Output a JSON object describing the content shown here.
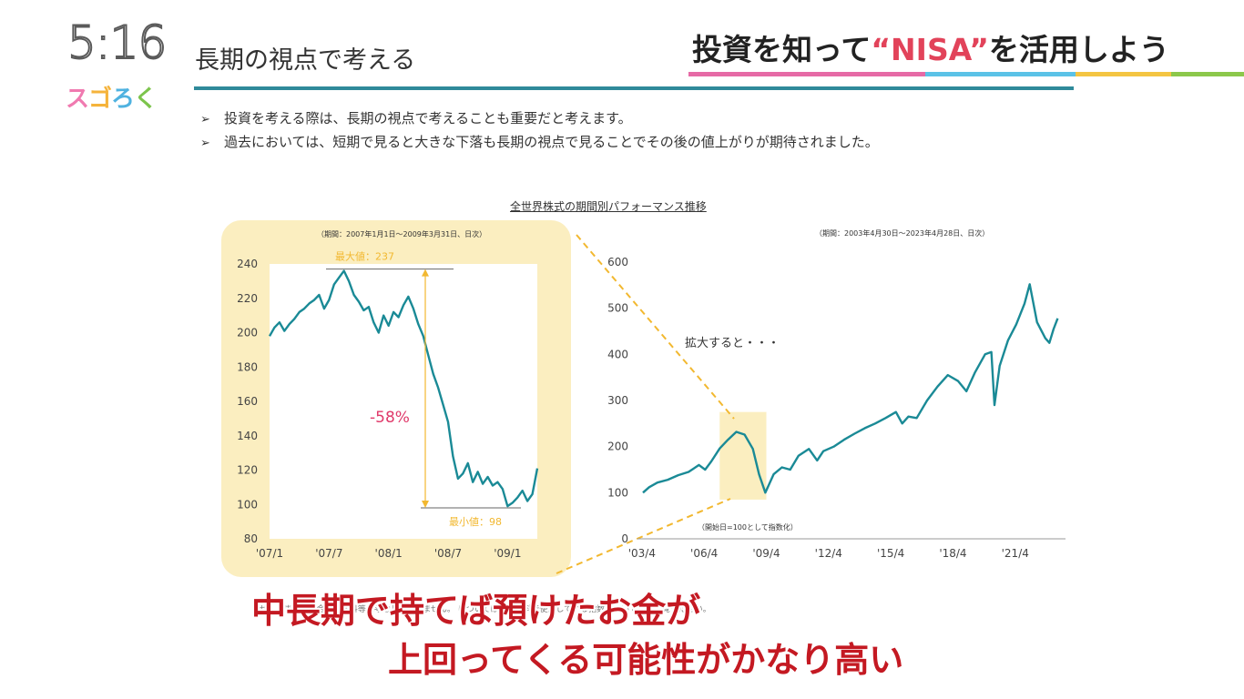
{
  "header": {
    "clock": "5:16",
    "show_logo": [
      "ス",
      "ゴ",
      "ろ",
      "く"
    ],
    "slide_title": "長期の視点で考える",
    "corner_title_a": "投資を知って",
    "corner_title_b": "“NISA”",
    "corner_title_c": "を活用しよう",
    "corner_bar_colors": [
      "#e66aa6",
      "#5bc2e7",
      "#f4c542",
      "#8cc84b"
    ]
  },
  "bullets": [
    "投資を考える際は、長期の視点で考えることも重要だと考えます。",
    "過去においては、短期で見ると大きな下落も長期の視点で見ることでその後の値上がりが期待されました。"
  ],
  "bullet_icon": "arrowhead-icon",
  "chart_title": "全世界株式の期間別パフォーマンス推移",
  "left_period": "（期間：2007年1月1日～2009年3月31日、日次）",
  "right_period": "（期間：2003年4月30日～2023年4月28日、日次）",
  "expand_note": "拡大すると・・・",
  "base_note": "（開始日=100として指数化）",
  "disclaimer": "ません。また、税金・手数料等は考慮しておりません。 については【本資料で使用している指数について】をご覧ください。",
  "caption_line1": "中長期で持てば預けたお金が",
  "caption_line2": "上回ってくる可能性がかなり高い",
  "colors": {
    "line": "#1a8a96",
    "highlight": "#fbeec0",
    "accent": "#f2b830",
    "drop": "#e0396a"
  },
  "chart_data": [
    {
      "type": "line",
      "title": "",
      "ylim": [
        80,
        240
      ],
      "yticks": [
        80,
        100,
        120,
        140,
        160,
        180,
        200,
        220,
        240
      ],
      "xticks": [
        "'07/1",
        "'07/7",
        "'08/1",
        "'08/7",
        "'09/1"
      ],
      "series": [
        {
          "x": [
            0,
            0.5,
            1,
            1.5,
            2,
            2.5,
            3,
            3.5,
            4,
            4.5,
            5,
            5.5,
            6,
            6.5,
            7,
            7.5,
            8,
            8.5,
            9,
            9.5,
            10,
            10.5,
            11,
            11.5,
            12,
            12.5,
            13,
            13.5,
            14,
            14.5,
            15,
            15.5,
            16,
            16.5,
            17,
            17.5,
            18,
            18.5,
            19,
            19.5,
            20,
            20.5,
            21,
            21.5,
            22,
            22.5,
            23,
            23.5,
            24,
            24.5,
            25,
            25.5,
            26,
            26.5,
            27
          ],
          "y": [
            198,
            203,
            206,
            201,
            205,
            208,
            212,
            214,
            217,
            219,
            222,
            214,
            219,
            228,
            232,
            236,
            230,
            222,
            218,
            213,
            215,
            206,
            200,
            210,
            204,
            212,
            209,
            216,
            221,
            214,
            205,
            198,
            187,
            176,
            168,
            158,
            148,
            128,
            115,
            118,
            124,
            113,
            119,
            112,
            116,
            111,
            113,
            109,
            99,
            101,
            104,
            108,
            102,
            106,
            121
          ]
        }
      ],
      "annotations": {
        "max_label": "最大値：237",
        "min_label": "最小値：98",
        "drop_label": "-58%"
      }
    },
    {
      "type": "line",
      "title": "",
      "ylim": [
        0,
        600
      ],
      "yticks": [
        0,
        100,
        200,
        300,
        400,
        500,
        600
      ],
      "xticks": [
        "'03/4",
        "'06/4",
        "'09/4",
        "'12/4",
        "'15/4",
        "'18/4",
        "'21/4"
      ],
      "series": [
        {
          "x": [
            2003.3,
            2003.6,
            2004.0,
            2004.5,
            2005.0,
            2005.5,
            2006.0,
            2006.3,
            2006.6,
            2007.0,
            2007.4,
            2007.8,
            2008.2,
            2008.6,
            2008.9,
            2009.2,
            2009.6,
            2010.0,
            2010.4,
            2010.8,
            2011.3,
            2011.7,
            2012.0,
            2012.5,
            2013.0,
            2013.5,
            2014.0,
            2014.5,
            2015.0,
            2015.5,
            2015.8,
            2016.1,
            2016.5,
            2017.0,
            2017.5,
            2018.0,
            2018.5,
            2018.9,
            2019.3,
            2019.8,
            2020.1,
            2020.25,
            2020.5,
            2020.9,
            2021.3,
            2021.7,
            2021.95,
            2022.3,
            2022.7,
            2022.9,
            2023.1,
            2023.3
          ],
          "y": [
            100,
            112,
            122,
            128,
            138,
            145,
            160,
            150,
            168,
            196,
            215,
            232,
            226,
            195,
            140,
            100,
            140,
            155,
            150,
            180,
            195,
            170,
            190,
            200,
            215,
            228,
            240,
            250,
            262,
            275,
            250,
            265,
            262,
            300,
            330,
            355,
            342,
            320,
            360,
            400,
            405,
            290,
            375,
            430,
            465,
            510,
            552,
            470,
            435,
            425,
            455,
            478
          ]
        }
      ],
      "x_domain": [
        2003.3,
        2023.5
      ]
    }
  ]
}
